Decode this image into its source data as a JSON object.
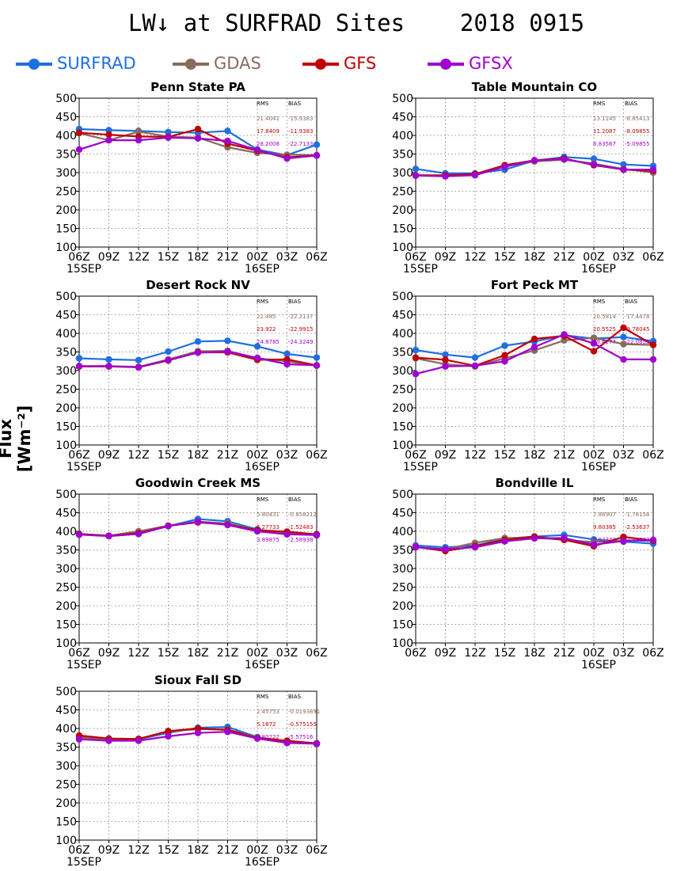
{
  "title": "LW↓ at SURFRAD Sites    2018 0915",
  "ylabel": "Flux [Wm⁻²]",
  "colors": {
    "SURFRAD": "#1e6fe0",
    "GDAS": "#8b6a5c",
    "GFS": "#c00000",
    "GFSX": "#a000d0"
  },
  "legend": [
    {
      "name": "SURFRAD",
      "color": "#1e6fe0"
    },
    {
      "name": "GDAS",
      "color": "#8b6a5c"
    },
    {
      "name": "GFS",
      "color": "#c00000"
    },
    {
      "name": "GFSX",
      "color": "#a000d0"
    }
  ],
  "chart_data": [
    {
      "type": "line",
      "title": "Penn State PA",
      "x": [
        "06Z",
        "09Z",
        "12Z",
        "15Z",
        "18Z",
        "21Z",
        "00Z",
        "03Z",
        "06Z"
      ],
      "x_sublabels": [
        "15SEP",
        "",
        "",
        "",
        "",
        "",
        "16SEP",
        "",
        ""
      ],
      "ylim": [
        100,
        500
      ],
      "yticks": [
        100,
        150,
        200,
        250,
        300,
        350,
        400,
        450,
        500
      ],
      "grid": true,
      "series": [
        {
          "name": "SURFRAD",
          "values": [
            417,
            414,
            412,
            409,
            407,
            412,
            362,
            347,
            375
          ]
        },
        {
          "name": "GDAS",
          "values": [
            406,
            387,
            410,
            397,
            394,
            368,
            353,
            348,
            347
          ]
        },
        {
          "name": "GFS",
          "values": [
            407,
            402,
            397,
            396,
            417,
            378,
            359,
            341,
            346
          ]
        },
        {
          "name": "GFSX",
          "values": [
            362,
            387,
            387,
            394,
            392,
            385,
            361,
            338,
            346
          ]
        }
      ],
      "stats_header": [
        "RMS",
        "BIAS"
      ],
      "stats": [
        {
          "series": "GDAS",
          "rms": "21.4041",
          "bias": "-15.9383"
        },
        {
          "series": "GFS",
          "rms": "17.8409",
          "bias": "-11.9383"
        },
        {
          "series": "GFSX",
          "rms": "28.2008",
          "bias": "-22.7133"
        }
      ]
    },
    {
      "type": "line",
      "title": "Table Mountain CO",
      "x": [
        "06Z",
        "09Z",
        "12Z",
        "15Z",
        "18Z",
        "21Z",
        "00Z",
        "03Z",
        "06Z"
      ],
      "x_sublabels": [
        "15SEP",
        "",
        "",
        "",
        "",
        "",
        "16SEP",
        "",
        ""
      ],
      "ylim": [
        100,
        500
      ],
      "yticks": [
        100,
        150,
        200,
        250,
        300,
        350,
        400,
        450,
        500
      ],
      "grid": true,
      "series": [
        {
          "name": "SURFRAD",
          "values": [
            310,
            298,
            298,
            308,
            332,
            342,
            337,
            322,
            318
          ]
        },
        {
          "name": "GDAS",
          "values": [
            293,
            292,
            296,
            317,
            330,
            335,
            324,
            310,
            300
          ]
        },
        {
          "name": "GFS",
          "values": [
            293,
            293,
            296,
            320,
            333,
            338,
            320,
            308,
            305
          ]
        },
        {
          "name": "GFSX",
          "values": [
            292,
            290,
            293,
            316,
            333,
            336,
            322,
            308,
            308
          ]
        }
      ],
      "stats_header": [
        "RMS",
        "BIAS"
      ],
      "stats": [
        {
          "series": "GDAS",
          "rms": "13.1145",
          "bias": "-8.85413"
        },
        {
          "series": "GFS",
          "rms": "11.2087",
          "bias": "-8.09855"
        },
        {
          "series": "GFSX",
          "rms": "8.83567",
          "bias": "-5.09855"
        }
      ]
    },
    {
      "type": "line",
      "title": "Desert Rock NV",
      "x": [
        "06Z",
        "09Z",
        "12Z",
        "15Z",
        "18Z",
        "21Z",
        "00Z",
        "03Z",
        "06Z"
      ],
      "x_sublabels": [
        "15SEP",
        "",
        "",
        "",
        "",
        "",
        "16SEP",
        "",
        ""
      ],
      "ylim": [
        100,
        500
      ],
      "yticks": [
        100,
        150,
        200,
        250,
        300,
        350,
        400,
        450,
        500
      ],
      "grid": true,
      "series": [
        {
          "name": "SURFRAD",
          "values": [
            333,
            330,
            328,
            351,
            378,
            380,
            365,
            345,
            335
          ]
        },
        {
          "name": "GDAS",
          "values": [
            311,
            312,
            310,
            330,
            352,
            353,
            333,
            325,
            313
          ]
        },
        {
          "name": "GFS",
          "values": [
            311,
            311,
            309,
            327,
            349,
            349,
            329,
            330,
            314
          ]
        },
        {
          "name": "GFSX",
          "values": [
            312,
            312,
            309,
            328,
            348,
            351,
            334,
            317,
            314
          ]
        }
      ],
      "stats_header": [
        "RMS",
        "BIAS"
      ],
      "stats": [
        {
          "series": "GDAS",
          "rms": "22.485",
          "bias": "-22.2137"
        },
        {
          "series": "GFS",
          "rms": "23.922",
          "bias": "-22.9915"
        },
        {
          "series": "GFSX",
          "rms": "24.8785",
          "bias": "-24.3249"
        }
      ]
    },
    {
      "type": "line",
      "title": "Fort Peck MT",
      "x": [
        "06Z",
        "09Z",
        "12Z",
        "15Z",
        "18Z",
        "21Z",
        "00Z",
        "03Z",
        "06Z"
      ],
      "x_sublabels": [
        "15SEP",
        "",
        "",
        "",
        "",
        "",
        "16SEP",
        "",
        ""
      ],
      "ylim": [
        100,
        500
      ],
      "yticks": [
        100,
        150,
        200,
        250,
        300,
        350,
        400,
        450,
        500
      ],
      "grid": true,
      "series": [
        {
          "name": "SURFRAD",
          "values": [
            355,
            343,
            335,
            367,
            378,
            395,
            386,
            390,
            379
          ]
        },
        {
          "name": "GDAS",
          "values": [
            333,
            317,
            311,
            333,
            354,
            381,
            388,
            371,
            369
          ]
        },
        {
          "name": "GFS",
          "values": [
            335,
            329,
            313,
            341,
            385,
            393,
            352,
            415,
            369
          ]
        },
        {
          "name": "GFSX",
          "values": [
            291,
            311,
            313,
            325,
            363,
            397,
            373,
            330,
            330
          ]
        }
      ],
      "stats_header": [
        "RMS",
        "BIAS"
      ],
      "stats": [
        {
          "series": "GDAS",
          "rms": "20.5814",
          "bias": "-17.4478"
        },
        {
          "series": "GFS",
          "rms": "20.5525",
          "bias": "-9.78045"
        },
        {
          "series": "GFSX",
          "rms": "29.6277",
          "bias": "-22.0855"
        }
      ]
    },
    {
      "type": "line",
      "title": "Goodwin Creek MS",
      "x": [
        "06Z",
        "09Z",
        "12Z",
        "15Z",
        "18Z",
        "21Z",
        "00Z",
        "03Z",
        "06Z"
      ],
      "x_sublabels": [
        "15SEP",
        "",
        "",
        "",
        "",
        "",
        "16SEP",
        "",
        ""
      ],
      "ylim": [
        100,
        500
      ],
      "yticks": [
        100,
        150,
        200,
        250,
        300,
        350,
        400,
        450,
        500
      ],
      "grid": true,
      "series": [
        {
          "name": "SURFRAD",
          "values": [
            392,
            388,
            393,
            414,
            433,
            427,
            405,
            393,
            392
          ]
        },
        {
          "name": "GDAS",
          "values": [
            393,
            388,
            400,
            415,
            426,
            421,
            403,
            397,
            389
          ]
        },
        {
          "name": "GFS",
          "values": [
            393,
            388,
            395,
            415,
            424,
            418,
            403,
            399,
            392
          ]
        },
        {
          "name": "GFSX",
          "values": [
            391,
            387,
            393,
            414,
            426,
            417,
            400,
            392,
            390
          ]
        }
      ],
      "stats_header": [
        "RMS",
        "BIAS"
      ],
      "stats": [
        {
          "series": "GDAS",
          "rms": "5.80431",
          "bias": "-0.858212"
        },
        {
          "series": "GFS",
          "rms": "5.27733",
          "bias": "-1.52483"
        },
        {
          "series": "GFSX",
          "rms": "3.89875",
          "bias": "-2.58938"
        }
      ]
    },
    {
      "type": "line",
      "title": "Bondville IL",
      "x": [
        "06Z",
        "09Z",
        "12Z",
        "15Z",
        "18Z",
        "21Z",
        "00Z",
        "03Z",
        "06Z"
      ],
      "x_sublabels": [
        "",
        "",
        "",
        "",
        "",
        "",
        "16SEP",
        "",
        ""
      ],
      "ylim": [
        100,
        500
      ],
      "yticks": [
        100,
        150,
        200,
        250,
        300,
        350,
        400,
        450,
        500
      ],
      "grid": true,
      "series": [
        {
          "name": "SURFRAD",
          "values": [
            362,
            357,
            362,
            380,
            386,
            390,
            378,
            372,
            367
          ]
        },
        {
          "name": "GDAS",
          "values": [
            357,
            352,
            369,
            382,
            383,
            377,
            371,
            376,
            374
          ]
        },
        {
          "name": "GFS",
          "values": [
            358,
            347,
            360,
            377,
            386,
            377,
            360,
            385,
            375
          ]
        },
        {
          "name": "GFSX",
          "values": [
            357,
            352,
            357,
            373,
            381,
            382,
            364,
            374,
            377
          ]
        }
      ],
      "stats_header": [
        "RMS",
        "BIAS"
      ],
      "stats": [
        {
          "series": "GDAS",
          "rms": "7.86907",
          "bias": "-1.78158"
        },
        {
          "series": "GFS",
          "rms": "9.80385",
          "bias": "-2.53637"
        },
        {
          "series": "GFSX",
          "rms": "6.83348",
          "bias": "-2.48833"
        }
      ]
    },
    {
      "type": "line",
      "title": "Sioux Fall SD",
      "x": [
        "06Z",
        "09Z",
        "12Z",
        "15Z",
        "18Z",
        "21Z",
        "00Z",
        "03Z",
        "06Z"
      ],
      "x_sublabels": [
        "15SEP",
        "",
        "",
        "",
        "",
        "",
        "16SEP",
        "",
        ""
      ],
      "ylim": [
        100,
        500
      ],
      "yticks": [
        100,
        150,
        200,
        250,
        300,
        350,
        400,
        450,
        500
      ],
      "grid": true,
      "series": [
        {
          "name": "SURFRAD",
          "values": [
            376,
            372,
            371,
            388,
            402,
            404,
            377,
            361,
            360
          ]
        },
        {
          "name": "GDAS",
          "values": [
            376,
            371,
            372,
            392,
            398,
            397,
            376,
            366,
            358
          ]
        },
        {
          "name": "GFS",
          "values": [
            381,
            373,
            372,
            393,
            400,
            396,
            374,
            367,
            360
          ]
        },
        {
          "name": "GFSX",
          "values": [
            371,
            367,
            367,
            379,
            388,
            391,
            373,
            361,
            359
          ]
        }
      ],
      "stats_header": [
        "RMS",
        "BIAS"
      ],
      "stats": [
        {
          "series": "GDAS",
          "rms": "2.45753",
          "bias": "-0.0193891"
        },
        {
          "series": "GFS",
          "rms": "5.1872",
          "bias": "-0.575155"
        },
        {
          "series": "GFSX",
          "rms": "7.80222",
          "bias": "-5.57516"
        }
      ]
    }
  ]
}
